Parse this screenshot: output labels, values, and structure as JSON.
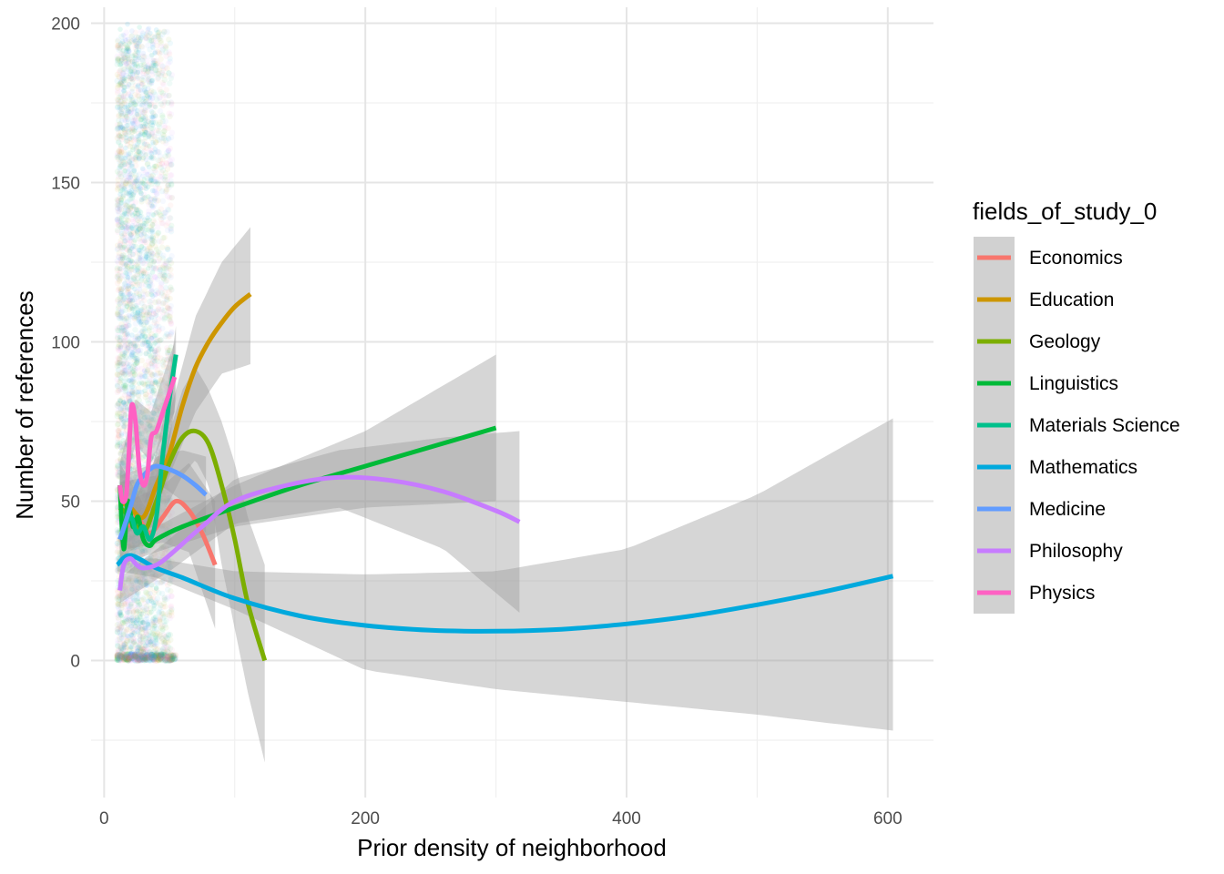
{
  "chart_data": {
    "type": "scatter",
    "xlabel": "Prior density of neighborhood",
    "ylabel": "Number of references",
    "xlim": [
      -10,
      635
    ],
    "ylim": [
      -43,
      205
    ],
    "x_ticks": [
      0,
      200,
      400,
      600
    ],
    "y_ticks": [
      0,
      50,
      100,
      150,
      200
    ],
    "grid": true,
    "legend_title": "fields_of_study_0",
    "legend_position": "right",
    "smooth_band_color": "#999999",
    "series": [
      {
        "name": "Economics",
        "color": "#F8766D",
        "x": [
          18,
          25,
          35,
          45,
          55,
          65,
          75,
          85
        ],
        "y": [
          42,
          45,
          40,
          45,
          50,
          47,
          40,
          30
        ],
        "band": {
          "x": [
            18,
            45,
            65,
            85
          ],
          "lo": [
            35,
            37,
            34,
            10
          ],
          "hi": [
            50,
            55,
            62,
            50
          ]
        }
      },
      {
        "name": "Education",
        "color": "#CD9600",
        "x": [
          12,
          20,
          30,
          40,
          50,
          60,
          70,
          80,
          90,
          100,
          112
        ],
        "y": [
          50,
          48,
          45,
          55,
          65,
          80,
          92,
          100,
          106,
          111,
          115
        ],
        "band": {
          "x": [
            12,
            40,
            70,
            90,
            112
          ],
          "lo": [
            42,
            48,
            78,
            90,
            93
          ],
          "hi": [
            58,
            62,
            108,
            125,
            136
          ]
        }
      },
      {
        "name": "Geology",
        "color": "#7CAE00",
        "x": [
          12,
          20,
          30,
          40,
          50,
          60,
          70,
          80,
          90,
          100,
          110,
          123
        ],
        "y": [
          48,
          45,
          40,
          50,
          62,
          70,
          72,
          68,
          55,
          38,
          18,
          0
        ],
        "band": {
          "x": [
            12,
            40,
            60,
            70,
            80,
            90,
            100,
            110,
            123
          ],
          "lo": [
            40,
            42,
            58,
            63,
            55,
            30,
            10,
            -10,
            -32
          ],
          "hi": [
            56,
            58,
            85,
            92,
            85,
            75,
            62,
            45,
            30
          ]
        }
      },
      {
        "name": "Linguistics",
        "color": "#00BA38",
        "x": [
          12,
          15,
          18,
          22,
          26,
          30,
          35,
          40,
          60,
          100,
          150,
          200,
          250,
          300
        ],
        "y": [
          55,
          35,
          50,
          42,
          45,
          38,
          36,
          38,
          42,
          48,
          55,
          61,
          67,
          73
        ],
        "band": {
          "x": [
            12,
            40,
            100,
            200,
            300
          ],
          "lo": [
            30,
            34,
            42,
            48,
            50
          ],
          "hi": [
            62,
            42,
            55,
            72,
            96
          ]
        }
      },
      {
        "name": "Materials Science",
        "color": "#00C08B",
        "x": [
          12,
          20,
          25,
          30,
          35,
          40,
          45,
          50,
          55
        ],
        "y": [
          38,
          45,
          40,
          42,
          38,
          45,
          65,
          82,
          96
        ],
        "band": {
          "x": [
            12,
            30,
            45,
            55
          ],
          "lo": [
            32,
            37,
            55,
            82
          ],
          "hi": [
            44,
            48,
            75,
            105
          ]
        }
      },
      {
        "name": "Mathematics",
        "color": "#00A9DD",
        "x": [
          10,
          20,
          40,
          60,
          100,
          150,
          200,
          250,
          300,
          350,
          400,
          450,
          500,
          550,
          604
        ],
        "y": [
          30,
          33,
          29,
          26,
          19.5,
          14,
          11,
          9.5,
          9.2,
          9.8,
          11.5,
          14,
          17.5,
          21.5,
          26.5
        ],
        "band": {
          "x": [
            10,
            40,
            100,
            200,
            300,
            400,
            500,
            604
          ],
          "lo": [
            28,
            26,
            16,
            -3,
            -9,
            -13,
            -17,
            -22
          ],
          "hi": [
            32,
            32,
            28,
            27,
            28,
            35,
            52,
            76
          ]
        }
      },
      {
        "name": "Medicine",
        "color": "#619CFF",
        "x": [
          12,
          20,
          25,
          30,
          35,
          40,
          50,
          60,
          70,
          78
        ],
        "y": [
          38,
          48,
          55,
          58,
          60,
          61,
          60,
          58,
          55,
          52
        ],
        "band": {
          "x": [
            12,
            40,
            60,
            78
          ],
          "lo": [
            35,
            56,
            50,
            40
          ],
          "hi": [
            41,
            64,
            66,
            64
          ]
        }
      },
      {
        "name": "Philosophy",
        "color": "#C77CFF",
        "x": [
          12,
          15,
          20,
          25,
          30,
          40,
          50,
          75,
          100,
          140,
          180,
          220,
          260,
          300,
          318
        ],
        "y": [
          22,
          30,
          32,
          30,
          29,
          30,
          33,
          42,
          50,
          55,
          57.5,
          56.5,
          53,
          47,
          43.5
        ],
        "band": {
          "x": [
            12,
            50,
            100,
            180,
            260,
            318
          ],
          "lo": [
            18,
            28,
            43,
            48,
            35,
            15
          ],
          "hi": [
            26,
            38,
            57,
            66,
            70,
            72
          ]
        }
      },
      {
        "name": "Physics",
        "color": "#FF61C3",
        "x": [
          12,
          14,
          17,
          19,
          21,
          24,
          27,
          30,
          33,
          36,
          40,
          45,
          50,
          54
        ],
        "y": [
          55,
          50,
          52,
          65,
          80,
          75,
          60,
          55,
          58,
          70,
          72,
          78,
          84,
          89
        ],
        "band": {
          "x": [
            12,
            24,
            36,
            54
          ],
          "lo": [
            48,
            68,
            62,
            78
          ],
          "hi": [
            62,
            82,
            78,
            100
          ]
        }
      }
    ]
  }
}
